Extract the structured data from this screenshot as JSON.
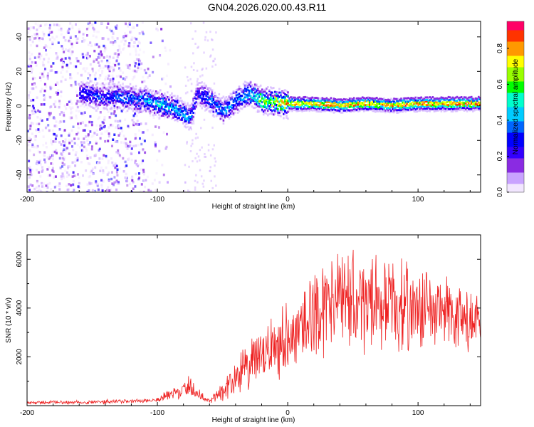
{
  "title": "GN04.2026.020.00.43.R11",
  "colors": {
    "snr_line": "#ee2222",
    "axis": "#000000",
    "colormap": [
      "#f2e6ff",
      "#c9a3ff",
      "#8a2be2",
      "#3300ff",
      "#0000ff",
      "#0066ff",
      "#00ccff",
      "#00ffcc",
      "#00ff00",
      "#99ff00",
      "#ffff00",
      "#ff9900",
      "#ff3300",
      "#ff0066"
    ]
  },
  "chart_data": [
    {
      "type": "heatmap",
      "title": "GN04.2026.020.00.43.R11",
      "xlabel": "Height of straight line (km)",
      "ylabel": "Frequency (Hz)",
      "xlim": [
        -200,
        148
      ],
      "ylim": [
        -50,
        49
      ],
      "x_ticks": [
        -200,
        -100,
        0,
        100
      ],
      "y_ticks": [
        -40,
        -20,
        0,
        20,
        40
      ],
      "colorbar": {
        "label": "Normalized spectral amplitude",
        "range": [
          0.0,
          0.95
        ],
        "ticks": [
          0.0,
          0.2,
          0.4,
          0.6,
          0.8
        ]
      },
      "ridge": {
        "x": [
          -160,
          -150,
          -140,
          -130,
          -120,
          -110,
          -100,
          -90,
          -80,
          -75,
          -70,
          -60,
          -50,
          -40,
          -30,
          -20,
          -10,
          0,
          20,
          40,
          60,
          80,
          100,
          120,
          148
        ],
        "y": [
          8,
          7,
          6,
          6,
          5,
          4,
          2,
          0,
          -4,
          -6,
          8,
          4,
          -2,
          4,
          8,
          4,
          3,
          2,
          2,
          1,
          2,
          1,
          2,
          2,
          2
        ],
        "amplitude": [
          0.3,
          0.35,
          0.35,
          0.4,
          0.4,
          0.45,
          0.55,
          0.5,
          0.45,
          0.4,
          0.3,
          0.4,
          0.45,
          0.45,
          0.5,
          0.7,
          0.8,
          0.85,
          0.9,
          0.9,
          0.9,
          0.9,
          0.9,
          0.95,
          0.95
        ]
      },
      "noise_region": [
        -200,
        -110
      ]
    },
    {
      "type": "line",
      "xlabel": "Height of straight line (km)",
      "ylabel": "SNR (10 * v/v)",
      "xlim": [
        -200,
        148
      ],
      "ylim": [
        0,
        7000
      ],
      "x_ticks": [
        -200,
        -100,
        0,
        100
      ],
      "y_ticks": [
        2000,
        4000,
        6000
      ],
      "envelope": {
        "x": [
          -200,
          -150,
          -120,
          -100,
          -90,
          -80,
          -75,
          -70,
          -60,
          -50,
          -40,
          -30,
          -20,
          -10,
          0,
          10,
          20,
          30,
          40,
          50,
          60,
          70,
          80,
          90,
          100,
          110,
          120,
          130,
          140,
          148
        ],
        "mean": [
          120,
          150,
          180,
          250,
          450,
          600,
          900,
          500,
          200,
          600,
          1200,
          1600,
          2000,
          2500,
          2800,
          3200,
          3800,
          4100,
          4300,
          4300,
          4200,
          4300,
          4100,
          4000,
          4000,
          3900,
          3800,
          3500,
          3400,
          3300
        ],
        "spread": [
          80,
          100,
          100,
          150,
          300,
          400,
          700,
          300,
          150,
          500,
          900,
          1200,
          1400,
          1700,
          1800,
          1900,
          2200,
          2300,
          2400,
          2500,
          2300,
          2200,
          2200,
          2100,
          2000,
          1900,
          1900,
          1800,
          1800,
          1700
        ]
      }
    }
  ]
}
